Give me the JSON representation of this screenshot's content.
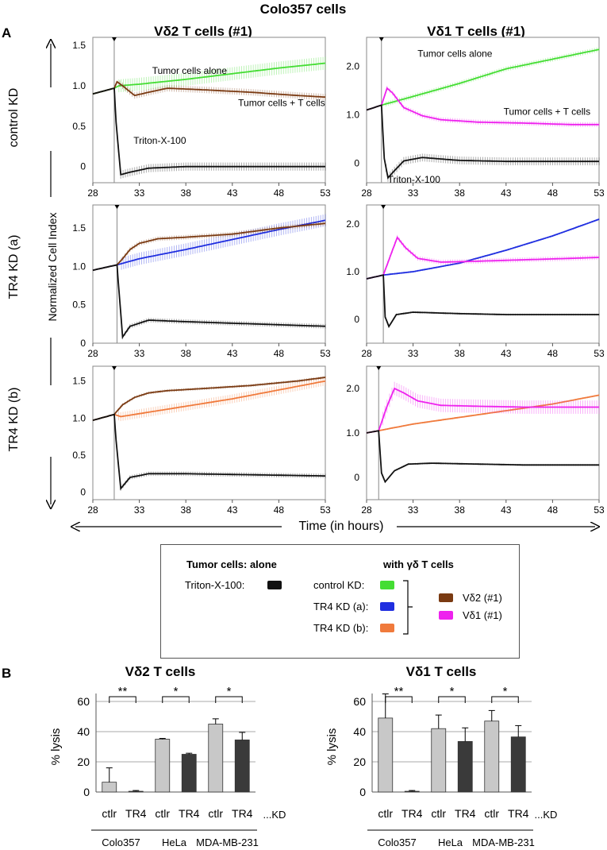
{
  "figure": {
    "title": "Colo357 cells",
    "label_a": "A",
    "label_b": "B",
    "col_titles": [
      "Vδ2 T cells (#1)",
      "Vδ1 T cells (#1)"
    ],
    "row_labels": [
      "control KD",
      "TR4 KD (a)",
      "TR4 KD (b)"
    ],
    "y_axis_label": "Normalized Cell Index",
    "x_axis_label": "Time (in hours)"
  },
  "legend": {
    "heading_left": "Tumor cells: alone",
    "heading_right": "with γδ T cells",
    "triton": "Triton-X-100:",
    "control": "control KD:",
    "tr4a": "TR4 KD (a):",
    "tr4b": "TR4 KD (b):",
    "vd2": "Vδ2 (#1)",
    "vd1": "Vδ1 (#1)"
  },
  "colors": {
    "green": "#44dd33",
    "blue": "#1f2ee0",
    "orange": "#f07a3c",
    "brown": "#7a3a12",
    "magenta": "#ee22ee",
    "black": "#111111",
    "bar_light": "#c8c8c8",
    "bar_dark": "#3a3a3a"
  },
  "chart_data": [
    {
      "type": "line",
      "panel": "A-control-Vd2",
      "title": "Vδ2 T cells (#1)",
      "row": "control KD",
      "xlabel": "Time (in hours)",
      "ylabel": "Normalized Cell Index",
      "xticks": [
        28,
        33,
        38,
        43,
        48,
        53
      ],
      "yticks": [
        0,
        0.5,
        1.0,
        1.5
      ],
      "xlim": [
        28,
        53
      ],
      "ylim": [
        -0.2,
        1.6
      ],
      "marker_x": 30.3,
      "annotations": [
        {
          "text": "Tumor cells alone",
          "x": 38.4,
          "y": 1.15
        },
        {
          "text": "Tumor cells + T cells",
          "x": 48.3,
          "y": 0.75
        },
        {
          "text": "Triton-X-100",
          "x": 35.2,
          "y": 0.28
        }
      ],
      "series": [
        {
          "name": "Tumor cells alone",
          "color": "green",
          "x": [
            28,
            30.3,
            30.8,
            33,
            38,
            43,
            48,
            53
          ],
          "y": [
            0.9,
            0.97,
            1.0,
            1.02,
            1.08,
            1.15,
            1.22,
            1.28
          ],
          "err": 0.08
        },
        {
          "name": "Tumor cells + T cells",
          "color": "brown",
          "x": [
            28,
            30.3,
            30.6,
            31.2,
            32.5,
            34,
            36,
            40,
            45,
            50,
            53
          ],
          "y": [
            0.9,
            0.97,
            1.05,
            1.0,
            0.88,
            0.92,
            0.97,
            0.95,
            0.92,
            0.88,
            0.86
          ],
          "err": 0.04
        },
        {
          "name": "Triton-X-100",
          "color": "black",
          "x": [
            28,
            30.3,
            30.5,
            31,
            32,
            34,
            38,
            43,
            48,
            53
          ],
          "y": [
            0.9,
            0.97,
            0.55,
            -0.1,
            -0.07,
            -0.02,
            0.0,
            0.0,
            0.0,
            0.0
          ],
          "err": 0.05
        }
      ]
    },
    {
      "type": "line",
      "panel": "A-control-Vd1",
      "title": "Vδ1 T cells (#1)",
      "row": "control KD",
      "xlabel": "Time (in hours)",
      "ylabel": "Normalized Cell Index",
      "xticks": [
        28,
        33,
        38,
        43,
        48,
        53
      ],
      "yticks": [
        0,
        1.0,
        2.0
      ],
      "xlim": [
        28,
        53
      ],
      "ylim": [
        -0.4,
        2.6
      ],
      "marker_x": 29.6,
      "annotations": [
        {
          "text": "Tumor cells alone",
          "x": 37.5,
          "y": 2.2
        },
        {
          "text": "Tumor cells + T cells",
          "x": 47.4,
          "y": 1.0
        },
        {
          "text": "Triton-X-100",
          "x": 33.1,
          "y": -0.4
        }
      ],
      "series": [
        {
          "name": "Tumor cells alone",
          "color": "green",
          "x": [
            28,
            29.6,
            33,
            38,
            43,
            48,
            53
          ],
          "y": [
            1.1,
            1.2,
            1.38,
            1.65,
            1.95,
            2.15,
            2.35
          ],
          "err": 0.05
        },
        {
          "name": "Tumor cells + T cells",
          "color": "magenta",
          "x": [
            28,
            29.6,
            30.2,
            30.8,
            32,
            34,
            36,
            40,
            45,
            50,
            53
          ],
          "y": [
            1.1,
            1.2,
            1.55,
            1.45,
            1.15,
            0.98,
            0.9,
            0.85,
            0.83,
            0.8,
            0.8
          ],
          "err": 0.05
        },
        {
          "name": "Triton-X-100",
          "color": "black",
          "x": [
            28,
            29.6,
            29.9,
            30.3,
            31,
            32,
            34,
            38,
            43,
            48,
            53
          ],
          "y": [
            1.1,
            1.2,
            0.1,
            -0.3,
            -0.15,
            0.05,
            0.12,
            0.06,
            0.04,
            0.04,
            0.04
          ],
          "err": 0.08
        }
      ]
    },
    {
      "type": "line",
      "panel": "A-TR4a-Vd2",
      "title": "Vδ2 T cells (#1)",
      "row": "TR4 KD (a)",
      "xticks": [
        28,
        33,
        38,
        43,
        48,
        53
      ],
      "yticks": [
        0,
        0.5,
        1.0,
        1.5
      ],
      "xlim": [
        28,
        53
      ],
      "ylim": [
        0,
        1.8
      ],
      "marker_x": 30.6,
      "series": [
        {
          "name": "TR4 KD (a) alone",
          "color": "blue",
          "x": [
            28,
            30.6,
            33,
            38,
            43,
            48,
            53
          ],
          "y": [
            0.95,
            1.02,
            1.1,
            1.22,
            1.35,
            1.48,
            1.6
          ],
          "err": 0.08
        },
        {
          "name": "TR4 KD (a) + Vδ2",
          "color": "brown",
          "x": [
            28,
            30.6,
            31.2,
            32,
            33,
            35,
            38,
            43,
            48,
            53
          ],
          "y": [
            0.95,
            1.02,
            1.1,
            1.22,
            1.3,
            1.36,
            1.38,
            1.42,
            1.5,
            1.56
          ],
          "err": 0.03
        },
        {
          "name": "Triton-X-100",
          "color": "black",
          "x": [
            28,
            30.6,
            30.8,
            31.2,
            32,
            34,
            38,
            43,
            48,
            53
          ],
          "y": [
            0.95,
            1.02,
            0.7,
            0.08,
            0.22,
            0.3,
            0.28,
            0.26,
            0.24,
            0.22
          ],
          "err": 0.03
        }
      ]
    },
    {
      "type": "line",
      "panel": "A-TR4a-Vd1",
      "title": "Vδ1 T cells (#1)",
      "row": "TR4 KD (a)",
      "xticks": [
        28,
        33,
        38,
        43,
        48,
        53
      ],
      "yticks": [
        0,
        1.0,
        2.0
      ],
      "xlim": [
        28,
        53
      ],
      "ylim": [
        -0.5,
        2.4
      ],
      "marker_x": 29.8,
      "series": [
        {
          "name": "TR4 KD (a) alone",
          "color": "blue",
          "x": [
            28,
            29.8,
            33,
            38,
            43,
            48,
            53
          ],
          "y": [
            0.85,
            0.93,
            1.0,
            1.18,
            1.45,
            1.75,
            2.1
          ],
          "err": 0.02
        },
        {
          "name": "TR4 KD (a) + Vδ1",
          "color": "magenta",
          "x": [
            28,
            29.8,
            30.5,
            31.3,
            32.2,
            33.5,
            36,
            40,
            45,
            50,
            53
          ],
          "y": [
            0.85,
            0.93,
            1.3,
            1.72,
            1.5,
            1.28,
            1.2,
            1.22,
            1.25,
            1.28,
            1.3
          ],
          "err": 0.05
        },
        {
          "name": "Triton-X-100",
          "color": "black",
          "x": [
            28,
            29.8,
            30.0,
            30.4,
            31.2,
            33,
            38,
            43,
            48,
            53
          ],
          "y": [
            0.85,
            0.93,
            0.05,
            -0.15,
            0.1,
            0.15,
            0.12,
            0.1,
            0.1,
            0.1
          ],
          "err": 0.02
        }
      ]
    },
    {
      "type": "line",
      "panel": "A-TR4b-Vd2",
      "title": "Vδ2 T cells (#1)",
      "row": "TR4 KD (b)",
      "xticks": [
        28,
        33,
        38,
        43,
        48,
        53
      ],
      "yticks": [
        0,
        0.5,
        1.0,
        1.5
      ],
      "xlim": [
        28,
        53
      ],
      "ylim": [
        -0.1,
        1.7
      ],
      "marker_x": 30.3,
      "series": [
        {
          "name": "TR4 KD (b) alone",
          "color": "orange",
          "x": [
            28,
            30.3,
            31,
            33,
            38,
            43,
            48,
            53
          ],
          "y": [
            0.97,
            1.05,
            1.02,
            1.06,
            1.16,
            1.26,
            1.38,
            1.5
          ],
          "err": 0.06
        },
        {
          "name": "TR4 KD (b) + Vδ2",
          "color": "brown",
          "x": [
            28,
            30.3,
            31.2,
            32.5,
            34,
            36,
            40,
            45,
            50,
            53
          ],
          "y": [
            0.97,
            1.05,
            1.18,
            1.28,
            1.34,
            1.37,
            1.4,
            1.44,
            1.5,
            1.55
          ],
          "err": 0.02
        },
        {
          "name": "Triton-X-100",
          "color": "black",
          "x": [
            28,
            30.3,
            30.5,
            31,
            32,
            34,
            38,
            43,
            48,
            53
          ],
          "y": [
            0.97,
            1.05,
            0.7,
            0.05,
            0.2,
            0.25,
            0.25,
            0.24,
            0.23,
            0.22
          ],
          "err": 0.03
        }
      ]
    },
    {
      "type": "line",
      "panel": "A-TR4b-Vd1",
      "title": "Vδ1 T cells (#1)",
      "row": "TR4 KD (b)",
      "xticks": [
        28,
        33,
        38,
        43,
        48,
        53
      ],
      "yticks": [
        0,
        1.0,
        2.0
      ],
      "xlim": [
        28,
        53
      ],
      "ylim": [
        -0.5,
        2.5
      ],
      "marker_x": 29.3,
      "series": [
        {
          "name": "TR4 KD (b) alone",
          "color": "orange",
          "x": [
            28,
            29.3,
            30.5,
            33,
            38,
            43,
            48,
            53
          ],
          "y": [
            1.0,
            1.05,
            1.1,
            1.2,
            1.35,
            1.5,
            1.65,
            1.85
          ],
          "err": 0.02
        },
        {
          "name": "TR4 KD (b) + Vδ1",
          "color": "magenta",
          "x": [
            28,
            29.3,
            30.2,
            31,
            32,
            33.5,
            36,
            40,
            45,
            50,
            53
          ],
          "y": [
            1.0,
            1.05,
            1.6,
            2.0,
            1.9,
            1.72,
            1.62,
            1.6,
            1.58,
            1.58,
            1.58
          ],
          "err": 0.15
        },
        {
          "name": "Triton-X-100",
          "color": "black",
          "x": [
            28,
            29.3,
            29.6,
            30,
            31,
            32.5,
            35,
            40,
            45,
            50,
            53
          ],
          "y": [
            1.0,
            1.05,
            0.1,
            -0.1,
            0.15,
            0.3,
            0.32,
            0.3,
            0.28,
            0.28,
            0.28
          ],
          "err": 0.02
        }
      ]
    },
    {
      "type": "bar",
      "panel": "B-Vd2",
      "title": "Vδ2 T cells",
      "ylabel": "% lysis",
      "ylim": [
        0,
        60
      ],
      "yticks": [
        0,
        20,
        40,
        60
      ],
      "tick_labels": [
        "ctlr",
        "TR4",
        "ctlr",
        "TR4",
        "ctlr",
        "TR4"
      ],
      "suffix": "...KD",
      "groups": [
        "Colo357",
        "HeLa",
        "MDA-MB-231"
      ],
      "values": [
        6.5,
        0.5,
        35,
        25,
        45,
        34.5
      ],
      "errors": [
        9.5,
        0.5,
        0.5,
        0.7,
        3.5,
        5
      ],
      "significance": [
        "**",
        "*",
        "*"
      ]
    },
    {
      "type": "bar",
      "panel": "B-Vd1",
      "title": "Vδ1 T cells",
      "ylabel": "% lysis",
      "ylim": [
        0,
        60
      ],
      "yticks": [
        0,
        20,
        40,
        60
      ],
      "tick_labels": [
        "ctlr",
        "TR4",
        "ctlr",
        "TR4",
        "ctlr",
        "TR4"
      ],
      "suffix": "...KD",
      "groups": [
        "Colo357",
        "HeLa",
        "MDA-MB-231"
      ],
      "values": [
        49,
        0.5,
        42,
        33.5,
        47,
        36.5
      ],
      "errors": [
        16,
        0.5,
        9,
        9,
        7,
        7.5
      ],
      "significance": [
        "**",
        "*",
        "*"
      ]
    }
  ]
}
